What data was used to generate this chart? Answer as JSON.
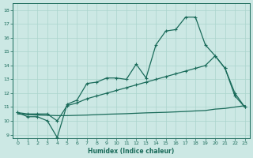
{
  "xlabel": "Humidex (Indice chaleur)",
  "bg_color": "#cce8e4",
  "grid_color": "#aad4cc",
  "line_color": "#1a6b5a",
  "xlim": [
    -0.5,
    23.5
  ],
  "ylim": [
    8.75,
    18.5
  ],
  "yticks": [
    9,
    10,
    11,
    12,
    13,
    14,
    15,
    16,
    17,
    18
  ],
  "xticks": [
    0,
    1,
    2,
    3,
    4,
    5,
    6,
    7,
    8,
    9,
    10,
    11,
    12,
    13,
    14,
    15,
    16,
    17,
    18,
    19,
    20,
    21,
    22,
    23
  ],
  "line1_y": [
    10.6,
    10.3,
    10.3,
    10.0,
    8.8,
    11.2,
    11.5,
    12.7,
    12.8,
    13.1,
    13.1,
    13.0,
    14.1,
    13.1,
    15.5,
    16.5,
    16.6,
    17.5,
    17.5,
    15.5,
    14.7,
    13.8,
    11.8,
    11.0
  ],
  "line2_y": [
    10.6,
    10.5,
    10.5,
    10.5,
    10.0,
    11.1,
    11.3,
    11.6,
    11.8,
    12.0,
    12.2,
    12.4,
    12.6,
    12.8,
    13.0,
    13.2,
    13.4,
    13.6,
    13.8,
    14.0,
    14.7,
    13.8,
    12.0,
    11.0
  ],
  "line3_y": [
    10.5,
    10.45,
    10.42,
    10.4,
    10.38,
    10.38,
    10.4,
    10.42,
    10.45,
    10.48,
    10.5,
    10.52,
    10.55,
    10.58,
    10.6,
    10.62,
    10.65,
    10.68,
    10.72,
    10.75,
    10.85,
    10.9,
    11.0,
    11.1
  ]
}
